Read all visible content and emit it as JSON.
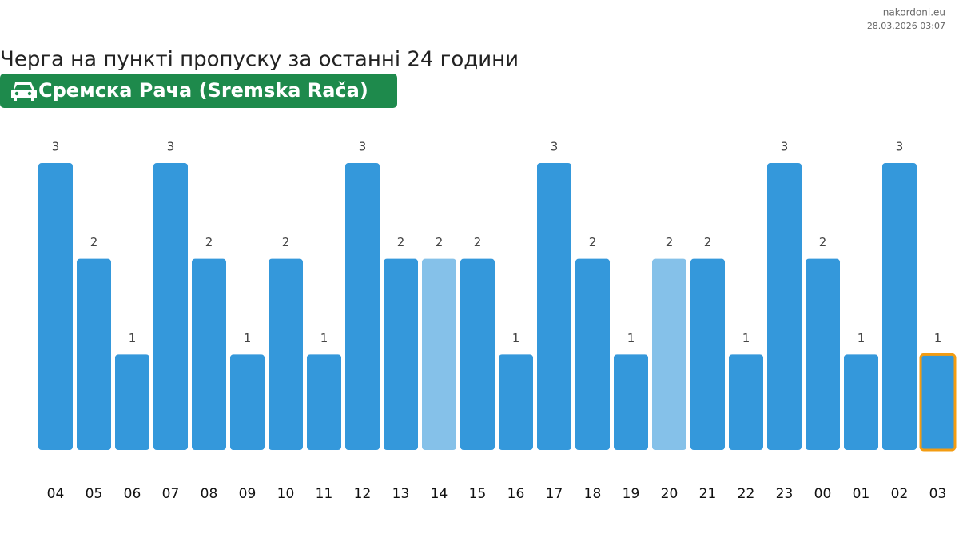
{
  "source": "nakordoni.eu",
  "timestamp": "28.03.2026 03:07",
  "chart_data": {
    "type": "bar",
    "title": "Черга на пункті пропуску за останні 24 години",
    "subtitle": "Сремска Рача (Sremska Rača)",
    "categories": [
      "04",
      "05",
      "06",
      "07",
      "08",
      "09",
      "10",
      "11",
      "12",
      "13",
      "14",
      "15",
      "16",
      "17",
      "18",
      "19",
      "20",
      "21",
      "22",
      "23",
      "00",
      "01",
      "02",
      "03"
    ],
    "values": [
      3,
      2,
      1,
      3,
      2,
      1,
      2,
      1,
      3,
      2,
      2,
      2,
      1,
      3,
      2,
      1,
      2,
      2,
      1,
      3,
      2,
      1,
      3,
      1
    ],
    "colors": [
      "#3498db",
      "#3498db",
      "#3498db",
      "#3498db",
      "#3498db",
      "#3498db",
      "#3498db",
      "#3498db",
      "#3498db",
      "#3498db",
      "#85c1e9",
      "#3498db",
      "#3498db",
      "#3498db",
      "#3498db",
      "#3498db",
      "#85c1e9",
      "#3498db",
      "#3498db",
      "#3498db",
      "#3498db",
      "#3498db",
      "#3498db",
      "#3498db"
    ],
    "highlight": "03",
    "highlight_color": "#f39c12",
    "ylim": [
      0,
      3
    ]
  }
}
